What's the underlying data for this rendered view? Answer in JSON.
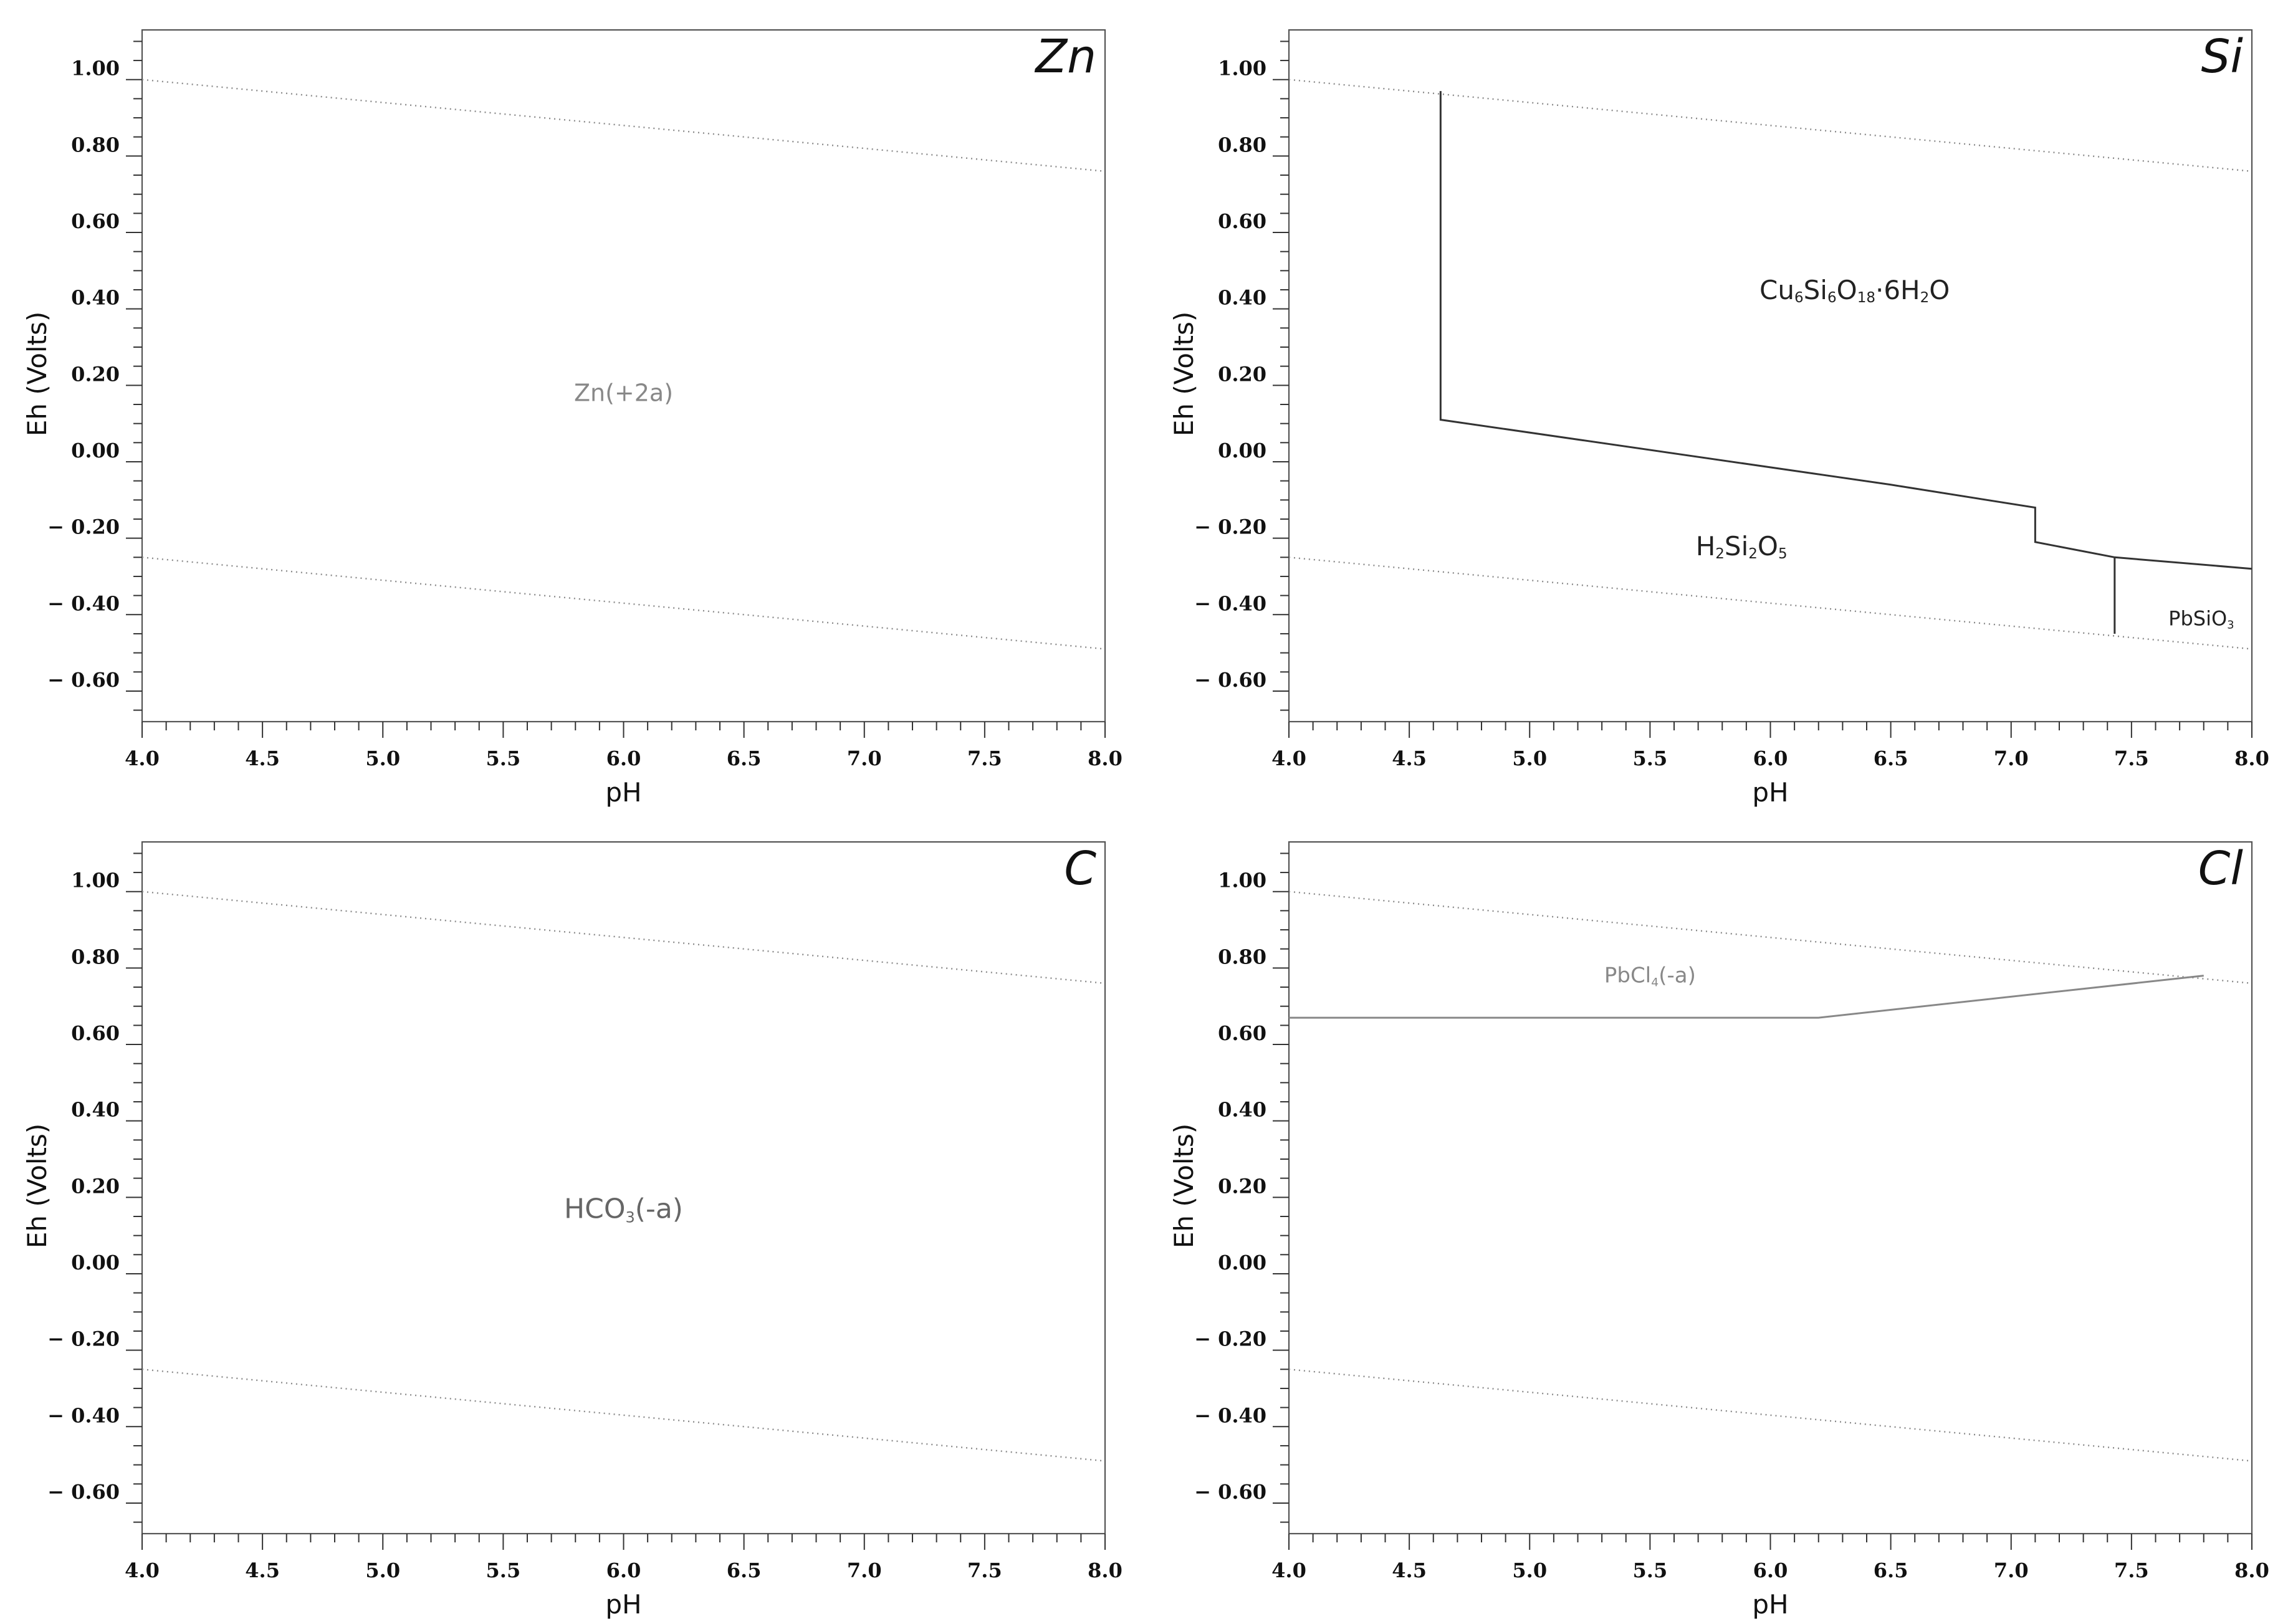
{
  "figure": {
    "colors": {
      "axis": "#333333",
      "water_line": "#8a8a8a",
      "dark": "#333333",
      "gray": "#888888"
    }
  },
  "chart_data": [
    {
      "type": "line",
      "title": "Zn",
      "xlabel": "pH",
      "ylabel": "Eh (Volts)",
      "xlim": [
        4.0,
        8.0
      ],
      "ylim": [
        -0.68,
        1.13
      ],
      "x_ticks": [
        4.0,
        4.5,
        5.0,
        5.5,
        6.0,
        6.5,
        7.0,
        7.5,
        8.0
      ],
      "x_tick_labels": [
        "4.0",
        "4.5",
        "5.0",
        "5.5",
        "6.0",
        "6.5",
        "7.0",
        "7.5",
        "8.0"
      ],
      "y_ticks": [
        1.0,
        0.8,
        0.6,
        0.4,
        0.2,
        0.0,
        -0.2,
        -0.4,
        -0.6
      ],
      "y_tick_labels": [
        "1.00",
        "0.80",
        "0.60",
        "0.40",
        "0.20",
        "0.00",
        "− 0.20",
        "− 0.40",
        "− 0.60"
      ],
      "water_lines": [
        {
          "name": "upper water stability",
          "x": [
            4.0,
            8.0
          ],
          "y": [
            1.0,
            0.76
          ]
        },
        {
          "name": "lower water stability",
          "x": [
            4.0,
            8.0
          ],
          "y": [
            -0.25,
            -0.49
          ]
        }
      ],
      "boundaries": [],
      "regions": [
        {
          "parts": [
            {
              "t": "Zn(+2a)"
            }
          ],
          "x": 6.0,
          "y": 0.18,
          "size": 38,
          "color": "#888888"
        }
      ]
    },
    {
      "type": "line",
      "title": "Si",
      "xlabel": "pH",
      "ylabel": "Eh (Volts)",
      "xlim": [
        4.0,
        8.0
      ],
      "ylim": [
        -0.68,
        1.13
      ],
      "x_ticks": [
        4.0,
        4.5,
        5.0,
        5.5,
        6.0,
        6.5,
        7.0,
        7.5,
        8.0
      ],
      "x_tick_labels": [
        "4.0",
        "4.5",
        "5.0",
        "5.5",
        "6.0",
        "6.5",
        "7.0",
        "7.5",
        "8.0"
      ],
      "y_ticks": [
        1.0,
        0.8,
        0.6,
        0.4,
        0.2,
        0.0,
        -0.2,
        -0.4,
        -0.6
      ],
      "y_tick_labels": [
        "1.00",
        "0.80",
        "0.60",
        "0.40",
        "0.20",
        "0.00",
        "− 0.20",
        "− 0.40",
        "− 0.60"
      ],
      "water_lines": [
        {
          "name": "upper water stability",
          "x": [
            4.0,
            8.0
          ],
          "y": [
            1.0,
            0.76
          ]
        },
        {
          "name": "lower water stability",
          "x": [
            4.0,
            8.0
          ],
          "y": [
            -0.25,
            -0.49
          ]
        }
      ],
      "boundaries": [
        {
          "name": "Cu6Si6O18 upper boundary",
          "color": "#333333",
          "x": [
            4.63,
            4.63,
            6.5,
            7.1,
            7.1,
            7.43,
            8.0
          ],
          "y": [
            0.97,
            0.11,
            -0.06,
            -0.12,
            -0.21,
            -0.25,
            -0.28
          ]
        },
        {
          "name": "PbSiO3 boundary",
          "color": "#333333",
          "x": [
            7.43,
            7.43
          ],
          "y": [
            -0.25,
            -0.45
          ]
        }
      ],
      "regions": [
        {
          "parts": [
            {
              "t": "Cu"
            },
            {
              "t": "6",
              "sub": true
            },
            {
              "t": "Si"
            },
            {
              "t": "6",
              "sub": true
            },
            {
              "t": "O"
            },
            {
              "t": "18",
              "sub": true
            },
            {
              "t": "·6H"
            },
            {
              "t": "2",
              "sub": true
            },
            {
              "t": "O"
            }
          ],
          "x": 6.35,
          "y": 0.45,
          "size": 42,
          "color": "#222222"
        },
        {
          "parts": [
            {
              "t": "H"
            },
            {
              "t": "2",
              "sub": true
            },
            {
              "t": "Si"
            },
            {
              "t": "2",
              "sub": true
            },
            {
              "t": "O"
            },
            {
              "t": "5",
              "sub": true
            }
          ],
          "x": 5.88,
          "y": -0.22,
          "size": 42,
          "color": "#222222"
        },
        {
          "parts": [
            {
              "t": "PbSiO"
            },
            {
              "t": "3",
              "sub": true
            }
          ],
          "x": 7.79,
          "y": -0.41,
          "size": 32,
          "color": "#222222"
        }
      ]
    },
    {
      "type": "line",
      "title": "C",
      "xlabel": "pH",
      "ylabel": "Eh (Volts)",
      "xlim": [
        4.0,
        8.0
      ],
      "ylim": [
        -0.68,
        1.13
      ],
      "x_ticks": [
        4.0,
        4.5,
        5.0,
        5.5,
        6.0,
        6.5,
        7.0,
        7.5,
        8.0
      ],
      "x_tick_labels": [
        "4.0",
        "4.5",
        "5.0",
        "5.5",
        "6.0",
        "6.5",
        "7.0",
        "7.5",
        "8.0"
      ],
      "y_ticks": [
        1.0,
        0.8,
        0.6,
        0.4,
        0.2,
        0.0,
        -0.2,
        -0.4,
        -0.6
      ],
      "y_tick_labels": [
        "1.00",
        "0.80",
        "0.60",
        "0.40",
        "0.20",
        "0.00",
        "− 0.20",
        "− 0.40",
        "− 0.60"
      ],
      "water_lines": [
        {
          "name": "upper water stability",
          "x": [
            4.0,
            8.0
          ],
          "y": [
            1.0,
            0.76
          ]
        },
        {
          "name": "lower water stability",
          "x": [
            4.0,
            8.0
          ],
          "y": [
            -0.25,
            -0.49
          ]
        }
      ],
      "boundaries": [],
      "regions": [
        {
          "parts": [
            {
              "t": "HCO"
            },
            {
              "t": "3",
              "sub": true
            },
            {
              "t": "(-a)"
            }
          ],
          "x": 6.0,
          "y": 0.17,
          "size": 44,
          "color": "#666666"
        }
      ]
    },
    {
      "type": "line",
      "title": "Cl",
      "xlabel": "pH",
      "ylabel": "Eh (Volts)",
      "xlim": [
        4.0,
        8.0
      ],
      "ylim": [
        -0.68,
        1.13
      ],
      "x_ticks": [
        4.0,
        4.5,
        5.0,
        5.5,
        6.0,
        6.5,
        7.0,
        7.5,
        8.0
      ],
      "x_tick_labels": [
        "4.0",
        "4.5",
        "5.0",
        "5.5",
        "6.0",
        "6.5",
        "7.0",
        "7.5",
        "8.0"
      ],
      "y_ticks": [
        1.0,
        0.8,
        0.6,
        0.4,
        0.2,
        0.0,
        -0.2,
        -0.4,
        -0.6
      ],
      "y_tick_labels": [
        "1.00",
        "0.80",
        "0.60",
        "0.40",
        "0.20",
        "0.00",
        "− 0.20",
        "− 0.40",
        "− 0.60"
      ],
      "water_lines": [
        {
          "name": "upper water stability",
          "x": [
            4.0,
            8.0
          ],
          "y": [
            1.0,
            0.76
          ]
        },
        {
          "name": "lower water stability",
          "x": [
            4.0,
            8.0
          ],
          "y": [
            -0.25,
            -0.49
          ]
        }
      ],
      "boundaries": [
        {
          "name": "PbCl4 lower boundary",
          "color": "#888888",
          "x": [
            4.0,
            6.2,
            7.8
          ],
          "y": [
            0.67,
            0.67,
            0.78
          ]
        }
      ],
      "regions": [
        {
          "parts": [
            {
              "t": "PbCl"
            },
            {
              "t": "4",
              "sub": true
            },
            {
              "t": "(-a)"
            }
          ],
          "x": 5.5,
          "y": 0.78,
          "size": 34,
          "color": "#888888"
        }
      ]
    }
  ]
}
